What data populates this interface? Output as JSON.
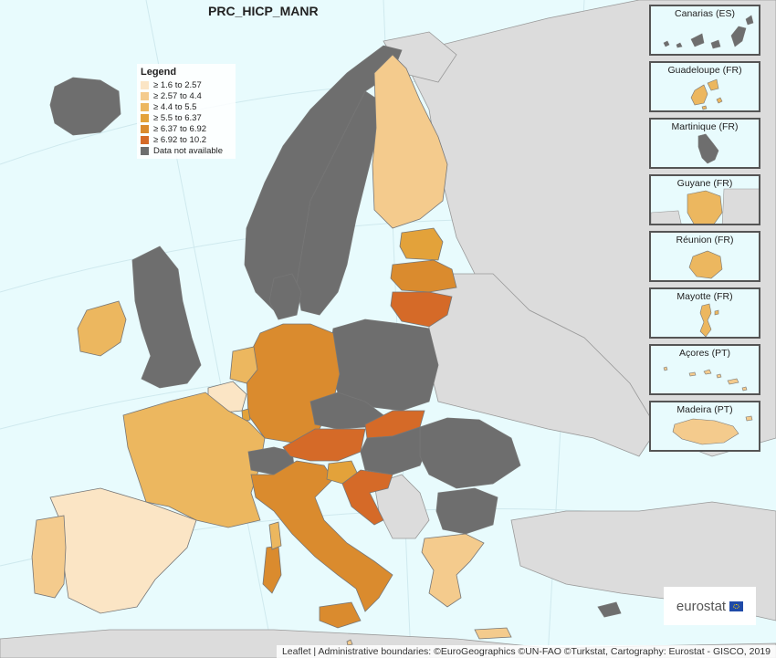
{
  "map": {
    "title": "PRC_HICP_MANR",
    "colors": {
      "sea": "#e8fbfd",
      "non_eu_land": "#dcdcdc",
      "no_data": "#6e6e6e",
      "border": "#777777"
    }
  },
  "legend": {
    "title": "Legend",
    "items": [
      {
        "label": "≥ 1.6 to 2.57",
        "color": "#fbe5c5"
      },
      {
        "label": "≥ 2.57 to 4.4",
        "color": "#f4cb8d"
      },
      {
        "label": "≥ 4.4 to 5.5",
        "color": "#ecb75f"
      },
      {
        "label": "≥ 5.5 to 6.37",
        "color": "#e3a23a"
      },
      {
        "label": "≥ 6.37 to 6.92",
        "color": "#da8b2e"
      },
      {
        "label": "≥ 6.92 to 10.2",
        "color": "#d56a28"
      },
      {
        "label": "Data not available",
        "color": "#6e6e6e"
      }
    ]
  },
  "insets": [
    {
      "label": "Canarias (ES)",
      "color": "#6e6e6e"
    },
    {
      "label": "Guadeloupe (FR)",
      "color": "#ecb75f"
    },
    {
      "label": "Martinique (FR)",
      "color": "#6e6e6e"
    },
    {
      "label": "Guyane (FR)",
      "color": "#ecb75f"
    },
    {
      "label": "Réunion (FR)",
      "color": "#ecb75f"
    },
    {
      "label": "Mayotte (FR)",
      "color": "#ecb75f"
    },
    {
      "label": "Açores (PT)",
      "color": "#f4cb8d"
    },
    {
      "label": "Madeira (PT)",
      "color": "#f4cb8d"
    }
  ],
  "countries": {
    "iceland": "#6e6e6e",
    "norway": "#6e6e6e",
    "sweden": "#6e6e6e",
    "finland": "#f4cb8d",
    "estonia": "#e3a23a",
    "latvia": "#da8b2e",
    "lithuania": "#d56a28",
    "poland": "#6e6e6e",
    "germany": "#da8b2e",
    "denmark": "#6e6e6e",
    "netherlands": "#ecb75f",
    "belgium": "#fbe5c5",
    "luxembourg": "#e3a23a",
    "france": "#ecb75f",
    "spain": "#fbe5c5",
    "portugal": "#f4cb8d",
    "ireland": "#ecb75f",
    "uk": "#6e6e6e",
    "switzerland": "#6e6e6e",
    "italy": "#da8b2e",
    "austria": "#d56a28",
    "czechia": "#6e6e6e",
    "slovakia": "#d56a28",
    "hungary": "#6e6e6e",
    "slovenia": "#e3a23a",
    "croatia": "#d56a28",
    "romania": "#6e6e6e",
    "bulgaria": "#6e6e6e",
    "greece": "#f4cb8d",
    "cyprus": "#6e6e6e",
    "malta": "#f4cb8d"
  },
  "logo": {
    "text": "eurostat"
  },
  "attribution": "Leaflet | Administrative boundaries: ©EuroGeographics ©UN-FAO ©Turkstat, Cartography: Eurostat - GISCO, 2019"
}
